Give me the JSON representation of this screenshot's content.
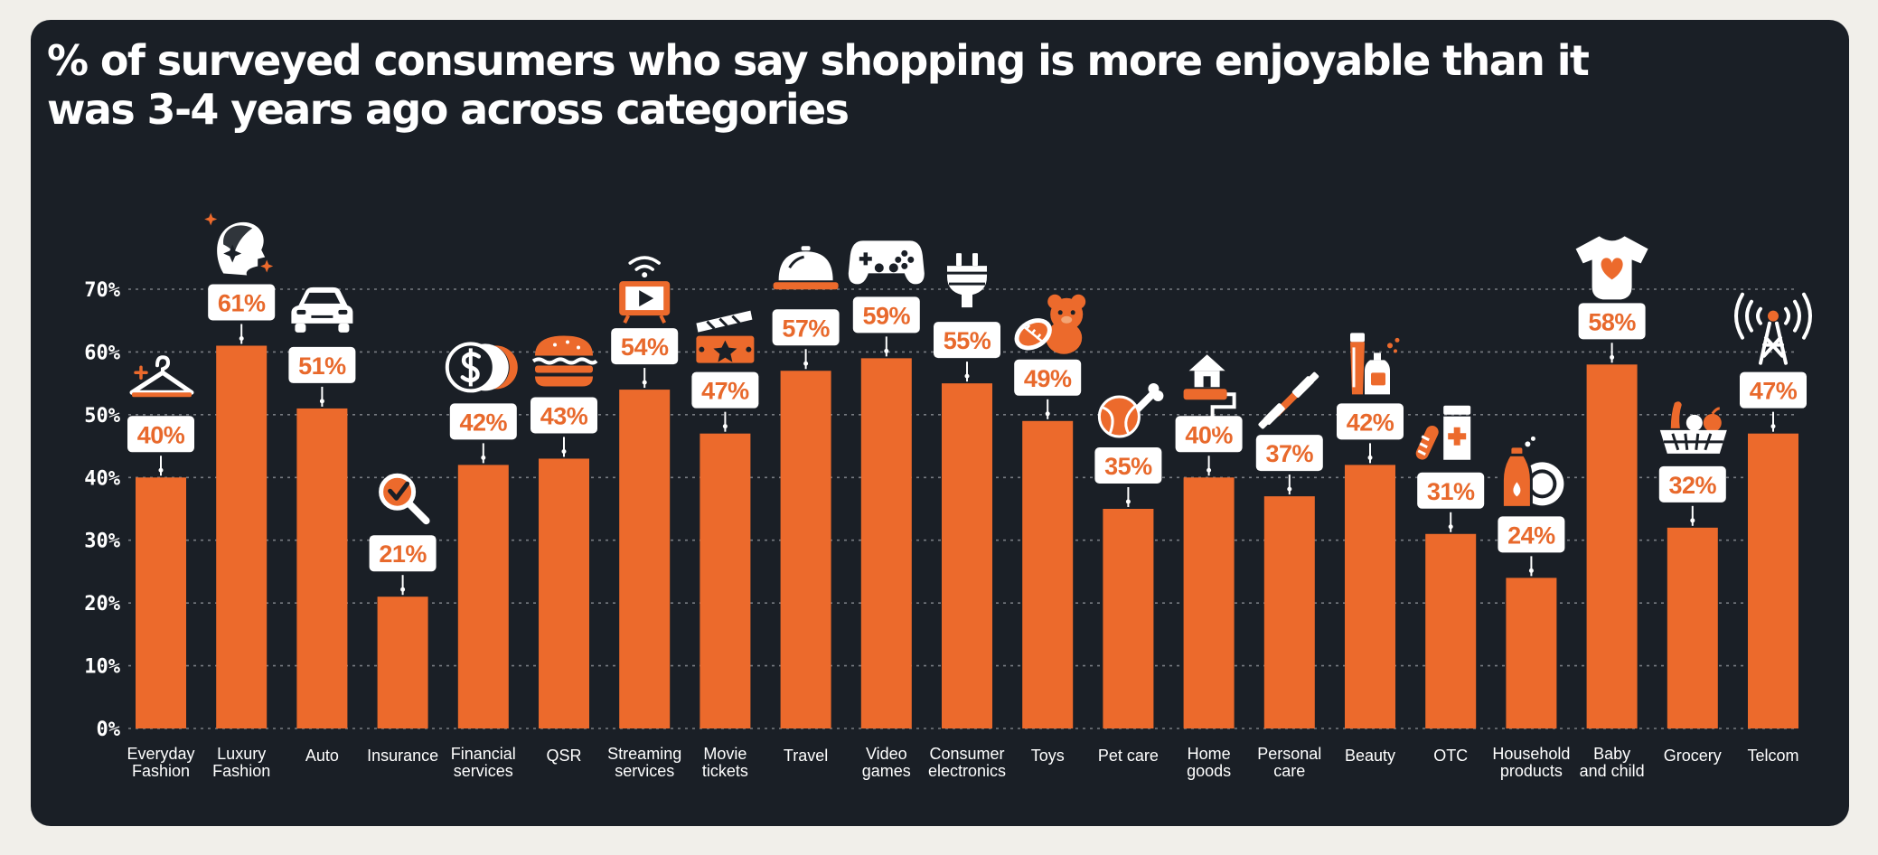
{
  "chart_data": {
    "type": "bar",
    "title": "% of surveyed consumers who say shopping is more enjoyable than it was 3-4 years ago across categories",
    "xlabel": "",
    "ylabel": "",
    "ylim": [
      0,
      70
    ],
    "yticks": [
      "0%",
      "10%",
      "20%",
      "30%",
      "40%",
      "50%",
      "60%",
      "70%"
    ],
    "grid": true,
    "bar_color": "#ec6a2c",
    "categories": [
      {
        "lines": [
          "Everyday",
          "Fashion"
        ],
        "icon": "hanger-icon"
      },
      {
        "lines": [
          "Luxury",
          "Fashion"
        ],
        "icon": "woman-profile-icon"
      },
      {
        "lines": [
          "Auto"
        ],
        "icon": "car-icon"
      },
      {
        "lines": [
          "Insurance"
        ],
        "icon": "magnifier-check-icon"
      },
      {
        "lines": [
          "Financial",
          "services"
        ],
        "icon": "coins-icon"
      },
      {
        "lines": [
          "QSR"
        ],
        "icon": "burger-icon"
      },
      {
        "lines": [
          "Streaming",
          "services"
        ],
        "icon": "tv-play-icon"
      },
      {
        "lines": [
          "Movie",
          "tickets"
        ],
        "icon": "clapper-ticket-icon"
      },
      {
        "lines": [
          "Travel"
        ],
        "icon": "service-bell-icon"
      },
      {
        "lines": [
          "Video",
          "games"
        ],
        "icon": "gamepad-icon"
      },
      {
        "lines": [
          "Consumer",
          "electronics"
        ],
        "icon": "plug-icon"
      },
      {
        "lines": [
          "Toys"
        ],
        "icon": "teddy-bear-icon"
      },
      {
        "lines": [
          "Pet care"
        ],
        "icon": "ball-bone-icon"
      },
      {
        "lines": [
          "Home",
          "goods"
        ],
        "icon": "house-roller-icon"
      },
      {
        "lines": [
          "Personal",
          "care"
        ],
        "icon": "dumbbell-icon"
      },
      {
        "lines": [
          "Beauty"
        ],
        "icon": "cosmetics-icon"
      },
      {
        "lines": [
          "OTC"
        ],
        "icon": "medicine-icon"
      },
      {
        "lines": [
          "Household",
          "products"
        ],
        "icon": "detergent-plate-icon"
      },
      {
        "lines": [
          "Baby",
          "and child"
        ],
        "icon": "onesie-icon"
      },
      {
        "lines": [
          "Grocery"
        ],
        "icon": "basket-icon"
      },
      {
        "lines": [
          "Telcom"
        ],
        "icon": "antenna-icon"
      }
    ],
    "values": [
      40,
      61,
      51,
      21,
      42,
      43,
      54,
      47,
      57,
      59,
      55,
      49,
      35,
      40,
      37,
      42,
      31,
      24,
      58,
      32,
      47
    ],
    "value_labels": [
      "40%",
      "61%",
      "51%",
      "21%",
      "42%",
      "43%",
      "54%",
      "47%",
      "57%",
      "59%",
      "55%",
      "49%",
      "35%",
      "40%",
      "37%",
      "42%",
      "31%",
      "24%",
      "58%",
      "32%",
      "47%"
    ]
  }
}
